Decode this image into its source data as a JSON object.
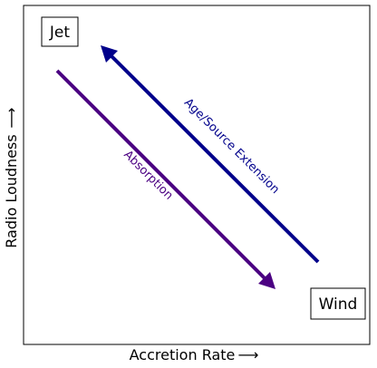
{
  "diagram": {
    "corner_labels": {
      "top_left": "Jet",
      "bottom_right": "Wind"
    },
    "axes": {
      "x_label": "Accretion Rate",
      "x_arrow": "⟶",
      "y_label": "Radio Loudness",
      "y_arrow": "⟶"
    },
    "arrows": [
      {
        "label": "Age/Source Extension",
        "color": "#00008b",
        "direction": "up-left"
      },
      {
        "label": "Absorption",
        "color": "#4b0082",
        "direction": "down-right"
      }
    ]
  }
}
